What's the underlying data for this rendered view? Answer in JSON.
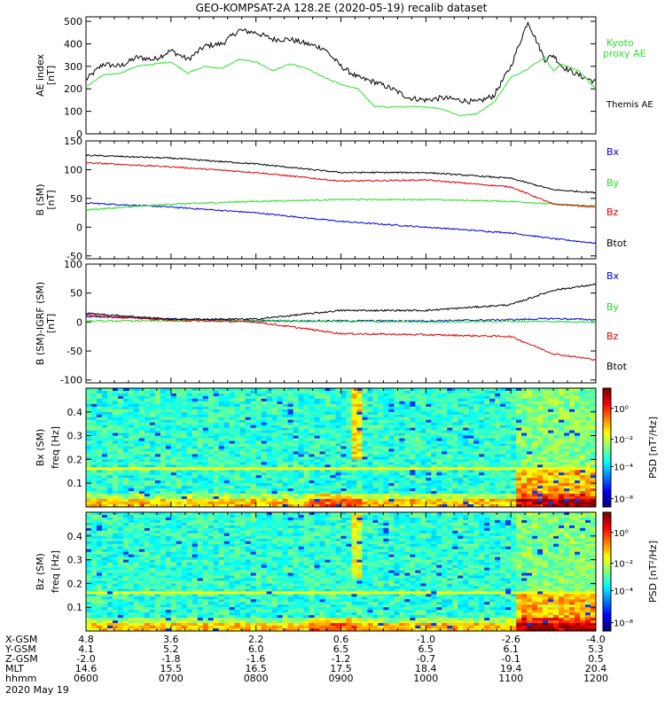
{
  "title": "GEO-KOMPSAT-2A 128.2E (2020-05-19) recalib dataset",
  "colors": {
    "bx": "#0000d8",
    "by": "#20e020",
    "bz": "#e00000",
    "btot": "#000000",
    "kyoto": "#30e030"
  },
  "panels": {
    "ae": {
      "ylabel_main": "AE index",
      "ylabel_unit": "[nT]",
      "yticks": [
        "0",
        "100",
        "200",
        "300",
        "400",
        "500"
      ],
      "legend": {
        "kyoto_1": "Kyoto",
        "kyoto_2": "proxy AE",
        "themis": "Themis AE"
      }
    },
    "b": {
      "ylabel_main": "B (SM)",
      "ylabel_unit": "[nT]",
      "yticks": [
        "-50",
        "0",
        "50",
        "100",
        "150"
      ],
      "legend": {
        "bx": "Bx",
        "by": "By",
        "bz": "Bz",
        "btot": "Btot"
      }
    },
    "db": {
      "ylabel_main": "B (SM)-IGRF (SM)",
      "ylabel_unit": "[nT]",
      "yticks": [
        "-100",
        "-50",
        "0",
        "50",
        "100"
      ],
      "legend": {
        "bx": "Bx",
        "by": "By",
        "bz": "Bz",
        "btot": "Btot"
      }
    },
    "spec_bx": {
      "ylabel_main": "Bx (SM)",
      "ylabel_unit": "freq [Hz]",
      "yticks": [
        "0.1",
        "0.2",
        "0.3",
        "0.4"
      ],
      "cbar_label": "PSD [nT²/Hz]",
      "cbar_ticks": [
        "10⁰",
        "10⁻²",
        "10⁻⁴",
        "10⁻⁸"
      ]
    },
    "spec_bz": {
      "ylabel_main": "Bz (SM)",
      "ylabel_unit": "freq [Hz]",
      "yticks": [
        "0.1",
        "0.2",
        "0.3",
        "0.4"
      ],
      "cbar_label": "PSD [nT²/Hz]",
      "cbar_ticks": [
        "10⁰",
        "10⁻²",
        "10⁻⁴",
        "10⁻⁸"
      ]
    }
  },
  "ephemeris": {
    "rows": [
      {
        "name": "X-GSM",
        "values": [
          "4.8",
          "3.6",
          "2.2",
          "0.6",
          "-1.0",
          "-2.6",
          "-4.0"
        ]
      },
      {
        "name": "Y-GSM",
        "values": [
          "4.1",
          "5.2",
          "6.0",
          "6.5",
          "6.5",
          "6.1",
          "5.3"
        ]
      },
      {
        "name": "Z-GSM",
        "values": [
          "-2.0",
          "-1.8",
          "-1.6",
          "-1.2",
          "-0.7",
          "-0.1",
          "0.5"
        ]
      },
      {
        "name": "MLT",
        "values": [
          "14.6",
          "15.5",
          "16.5",
          "17.5",
          "18.4",
          "19.4",
          "20.4"
        ]
      },
      {
        "name": "hhmm",
        "values": [
          "0600",
          "0700",
          "0800",
          "0900",
          "1000",
          "1100",
          "1200"
        ]
      }
    ],
    "date": "2020 May 19"
  },
  "chart_data": [
    {
      "type": "line",
      "title": "GEO-KOMPSAT-2A 128.2E (2020-05-19) recalib dataset",
      "ylabel": "AE index [nT]",
      "x_unit": "hours UT",
      "xlim": [
        6,
        12
      ],
      "ylim": [
        0,
        520
      ],
      "series": [
        {
          "name": "Themis AE",
          "x": [
            6.0,
            6.2,
            6.4,
            6.6,
            6.8,
            7.0,
            7.2,
            7.4,
            7.6,
            7.8,
            8.0,
            8.2,
            8.4,
            8.6,
            8.8,
            9.0,
            9.2,
            9.4,
            9.6,
            9.8,
            10.0,
            10.2,
            10.4,
            10.6,
            10.8,
            11.0,
            11.2,
            11.4,
            11.5,
            11.6,
            11.8,
            12.0
          ],
          "y": [
            240,
            310,
            300,
            340,
            330,
            370,
            330,
            390,
            400,
            460,
            450,
            420,
            420,
            400,
            380,
            300,
            250,
            230,
            200,
            160,
            150,
            160,
            150,
            140,
            170,
            300,
            500,
            330,
            350,
            300,
            260,
            230
          ]
        },
        {
          "name": "Kyoto proxy AE",
          "x": [
            6.0,
            6.2,
            6.4,
            6.6,
            6.8,
            7.0,
            7.2,
            7.4,
            7.6,
            7.8,
            8.0,
            8.2,
            8.4,
            8.6,
            8.8,
            9.0,
            9.2,
            9.4,
            9.6,
            9.8,
            10.0,
            10.2,
            10.4,
            10.6,
            10.8,
            11.0,
            11.2,
            11.4,
            11.5,
            11.6,
            11.8,
            12.0
          ],
          "y": [
            210,
            260,
            270,
            300,
            310,
            320,
            270,
            300,
            290,
            330,
            320,
            280,
            310,
            290,
            250,
            220,
            200,
            120,
            120,
            120,
            120,
            110,
            80,
            90,
            140,
            250,
            290,
            340,
            280,
            310,
            280,
            200
          ]
        }
      ]
    },
    {
      "type": "line",
      "ylabel": "B (SM) [nT]",
      "x_unit": "hours UT",
      "xlim": [
        6,
        12
      ],
      "ylim": [
        -55,
        150
      ],
      "series": [
        {
          "name": "Bx",
          "x": [
            6,
            7,
            8,
            9,
            10,
            11,
            11.5,
            12
          ],
          "y": [
            42,
            35,
            25,
            10,
            0,
            -10,
            -20,
            -28
          ]
        },
        {
          "name": "By",
          "x": [
            6,
            7,
            8,
            9,
            10,
            11,
            11.5,
            12
          ],
          "y": [
            30,
            40,
            45,
            48,
            48,
            45,
            40,
            37
          ]
        },
        {
          "name": "Bz",
          "x": [
            6,
            7,
            8,
            9,
            10,
            11,
            11.5,
            12
          ],
          "y": [
            112,
            105,
            95,
            80,
            82,
            70,
            40,
            35
          ]
        },
        {
          "name": "Btot",
          "x": [
            6,
            7,
            8,
            9,
            10,
            11,
            11.5,
            12
          ],
          "y": [
            125,
            120,
            110,
            95,
            95,
            85,
            65,
            60
          ]
        }
      ]
    },
    {
      "type": "line",
      "ylabel": "B (SM)-IGRF (SM) [nT]",
      "x_unit": "hours UT",
      "xlim": [
        6,
        12
      ],
      "ylim": [
        -105,
        100
      ],
      "series": [
        {
          "name": "Bx",
          "x": [
            6,
            7,
            8,
            9,
            10,
            11,
            11.5,
            12
          ],
          "y": [
            10,
            5,
            2,
            2,
            2,
            4,
            6,
            4
          ]
        },
        {
          "name": "By",
          "x": [
            6,
            7,
            8,
            9,
            10,
            11,
            11.5,
            12
          ],
          "y": [
            2,
            2,
            2,
            1,
            0,
            1,
            1,
            0
          ]
        },
        {
          "name": "Bz",
          "x": [
            6,
            7,
            8,
            9,
            10,
            11,
            11.5,
            12
          ],
          "y": [
            12,
            3,
            0,
            -20,
            -22,
            -25,
            -55,
            -65
          ]
        },
        {
          "name": "Btot",
          "x": [
            6,
            7,
            8,
            9,
            10,
            11,
            11.5,
            12
          ],
          "y": [
            15,
            5,
            5,
            20,
            20,
            30,
            55,
            65
          ]
        }
      ]
    },
    {
      "type": "heatmap",
      "ylabel": "Bx (SM) freq [Hz]",
      "x_unit": "hours UT",
      "xlim": [
        6,
        12
      ],
      "ylim": [
        0,
        0.5
      ],
      "colorbar_label": "PSD [nT²/Hz]"
    },
    {
      "type": "heatmap",
      "ylabel": "Bz (SM) freq [Hz]",
      "x_unit": "hours UT",
      "xlim": [
        6,
        12
      ],
      "ylim": [
        0,
        0.5
      ],
      "colorbar_label": "PSD [nT²/Hz]"
    }
  ]
}
